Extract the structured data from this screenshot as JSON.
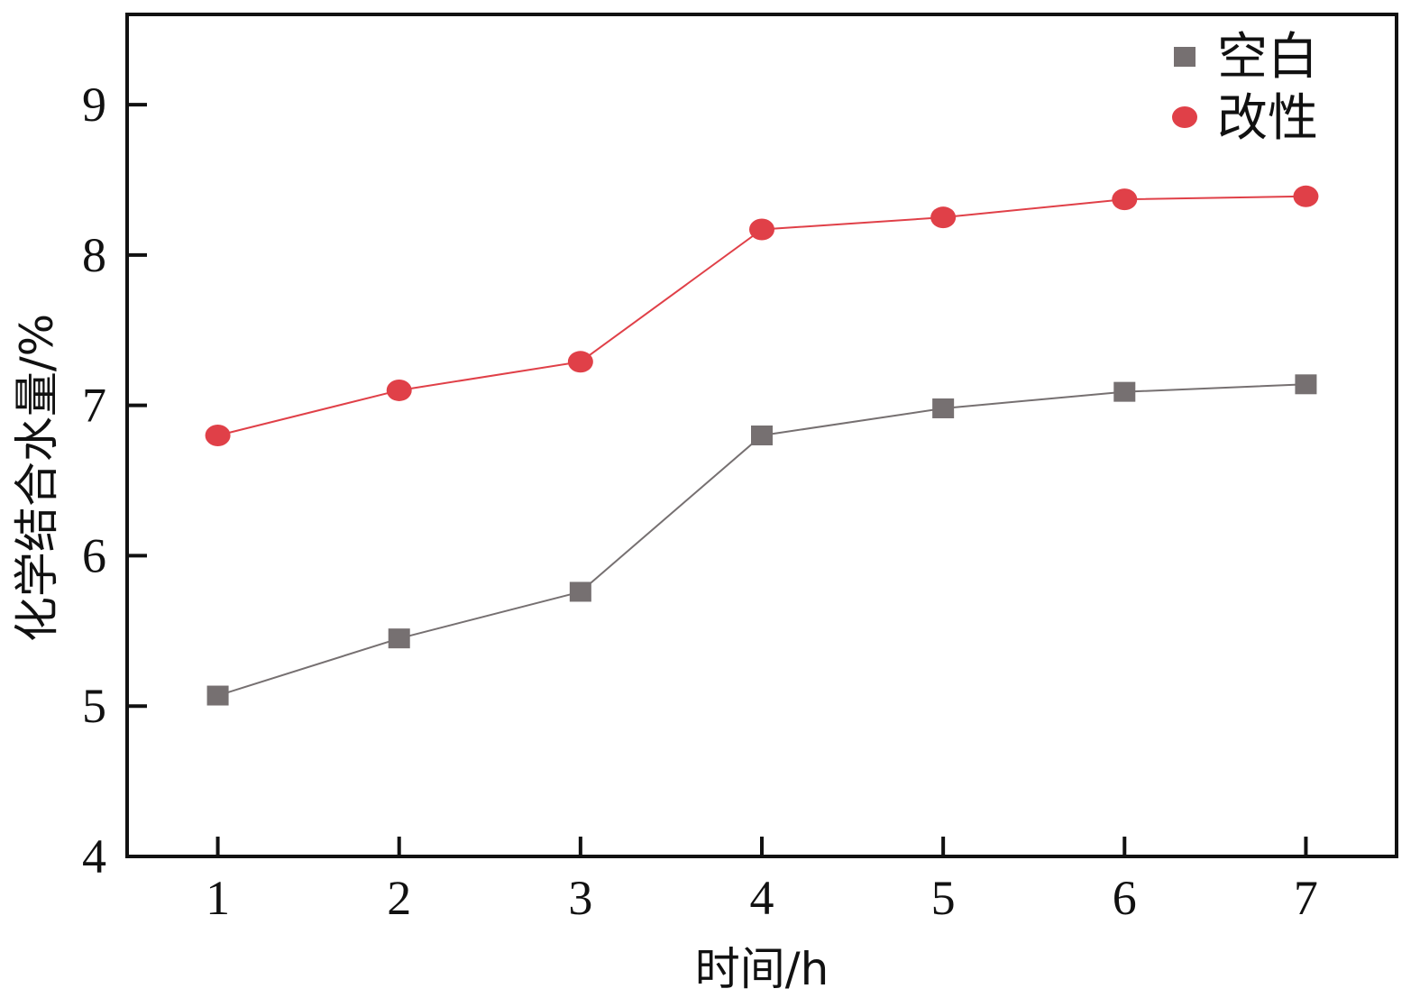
{
  "chart_data": {
    "type": "line",
    "title": "",
    "xlabel": "时间/h",
    "ylabel": "化学结合水量/%",
    "x": [
      1,
      2,
      3,
      4,
      5,
      6,
      7
    ],
    "xticks": [
      "1",
      "2",
      "3",
      "4",
      "5",
      "6",
      "7"
    ],
    "xlim": [
      0.5,
      7.5
    ],
    "yticks": [
      "4",
      "5",
      "6",
      "7",
      "8",
      "9"
    ],
    "ylim": [
      4,
      9.6
    ],
    "grid": false,
    "legend_position": "top-right",
    "series": [
      {
        "name": "空白",
        "marker": "square",
        "color": "#767071",
        "values": [
          5.07,
          5.45,
          5.76,
          6.8,
          6.98,
          7.09,
          7.14
        ]
      },
      {
        "name": "改性",
        "marker": "circle",
        "color": "#e04048",
        "values": [
          6.8,
          7.1,
          7.29,
          8.17,
          8.25,
          8.37,
          8.39
        ]
      }
    ]
  }
}
